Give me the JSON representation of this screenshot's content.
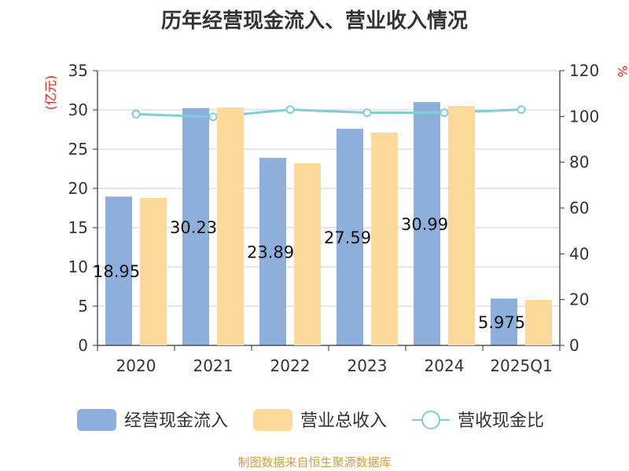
{
  "chart_data": {
    "type": "bar",
    "title": "历年经营现金流入、营业收入情况",
    "categories": [
      "2020",
      "2021",
      "2022",
      "2023",
      "2024",
      "2025Q1"
    ],
    "series": [
      {
        "name": "经营现金流入",
        "axis": "left",
        "color": "#8eaedc",
        "values": [
          18.958,
          30.234,
          23.89,
          27.595,
          30.997,
          5.975
        ]
      },
      {
        "name": "营业总收入",
        "axis": "left",
        "color": "#fdd99b",
        "values": [
          18.8,
          30.3,
          23.2,
          27.1,
          30.5,
          5.8
        ]
      },
      {
        "name": "营收现金比",
        "axis": "right",
        "type": "line",
        "color": "#7ecfd3",
        "values": [
          101,
          99.8,
          103,
          101.6,
          101.6,
          103
        ]
      }
    ],
    "data_labels": [
      "18.958",
      "30.234",
      "23.89",
      "27.595",
      "30.997",
      "5.975"
    ],
    "ylabel": "(亿元)",
    "y2label": "%",
    "ylim": [
      0,
      35
    ],
    "yticks": [
      0,
      5,
      10,
      15,
      20,
      25,
      30,
      35
    ],
    "y2lim": [
      0,
      120
    ],
    "y2ticks": [
      0,
      20,
      40,
      60,
      80,
      100,
      120
    ],
    "grid": true,
    "legend_position": "bottom"
  },
  "source": "制图数据来自恒生聚源数据库"
}
